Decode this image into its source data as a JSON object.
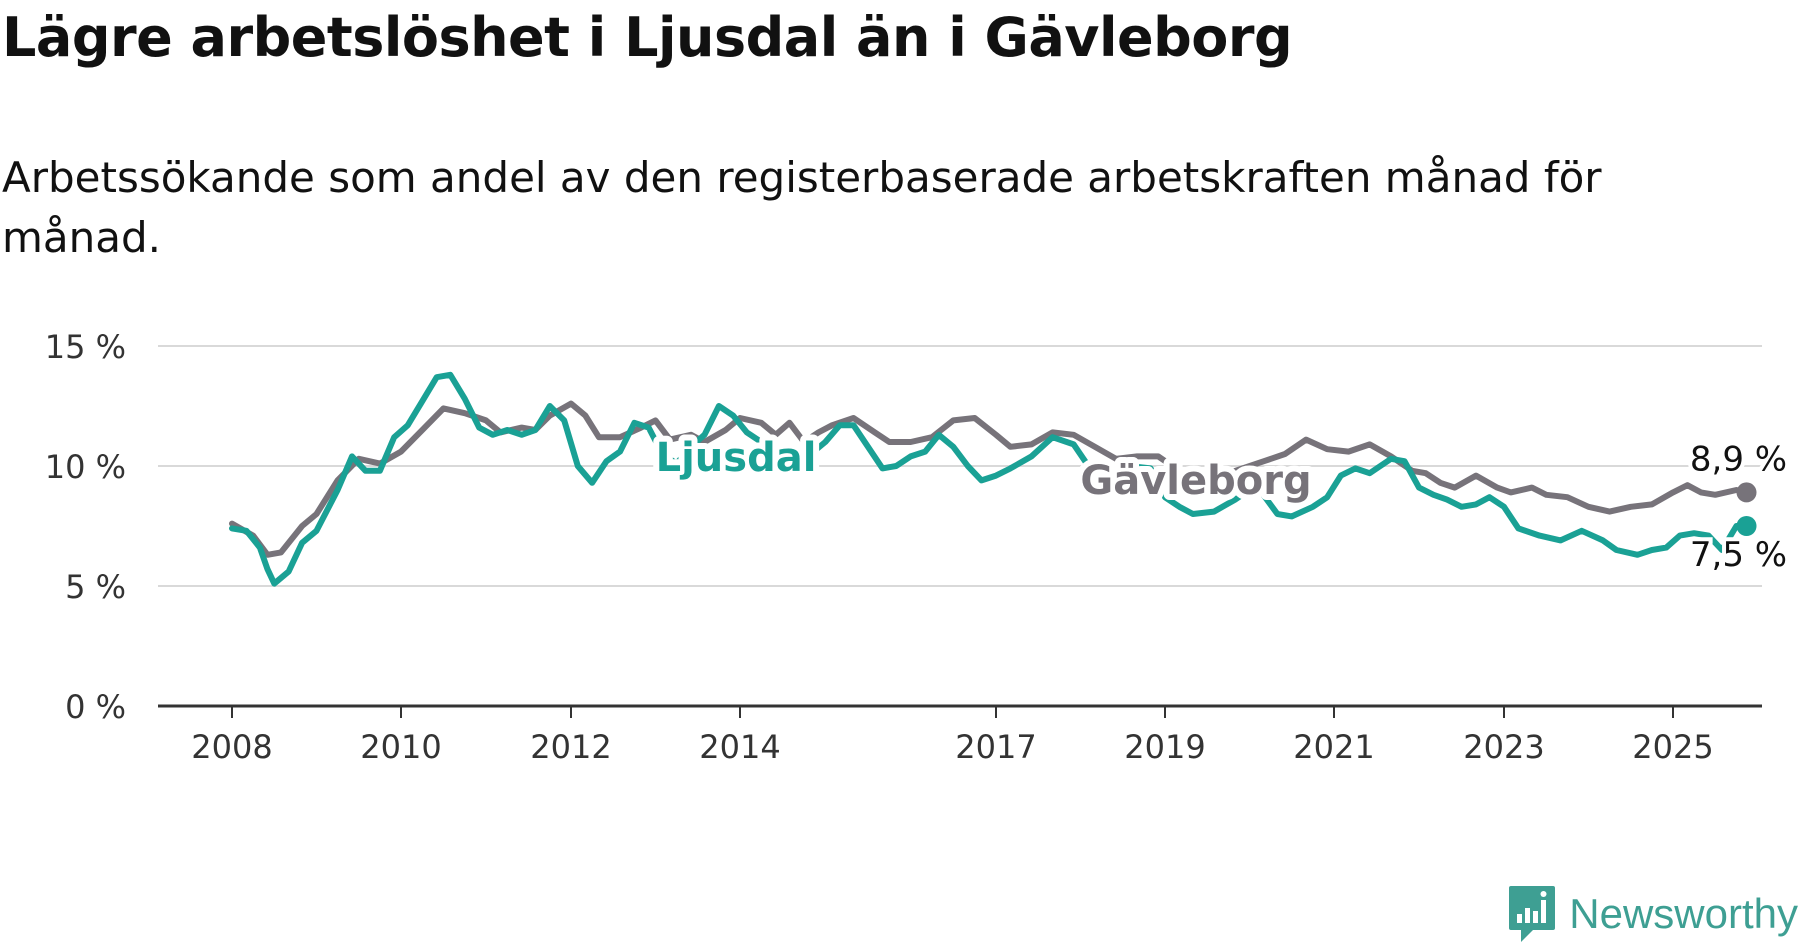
{
  "title": "Lägre arbetslöshet i Ljusdal än i Gävleborg",
  "subtitle": "Arbetssökande som andel av den registerbaserade arbetskraften månad för månad.",
  "brand": {
    "name": "Newsworthy",
    "color": "#3e9f93",
    "icon": "newsworthy-logo-icon"
  },
  "chart_data": {
    "type": "line",
    "title": "Lägre arbetslöshet i Ljusdal än i Gävleborg",
    "subtitle": "Arbetssökande som andel av den registerbaserade arbetskraften månad för månad.",
    "xlabel": "",
    "ylabel": "",
    "xlim": [
      2007.8,
      2025.9
    ],
    "ylim": [
      0,
      15
    ],
    "y_ticks": [
      0,
      5,
      10,
      15
    ],
    "y_tick_labels": [
      "0 %",
      "5 %",
      "10 %",
      "15 %"
    ],
    "x_ticks": [
      2008,
      2010,
      2012,
      2014,
      2017,
      2019,
      2021,
      2023,
      2025
    ],
    "x_tick_labels": [
      "2008",
      "2010",
      "2012",
      "2014",
      "2017",
      "2019",
      "2021",
      "2023",
      "2025"
    ],
    "grid": true,
    "legend": "inline labels",
    "series": [
      {
        "name": "Gävleborg",
        "color": "#77737a",
        "end_label": "8,9 %",
        "points": [
          [
            2008.0,
            7.6
          ],
          [
            2008.25,
            7.1
          ],
          [
            2008.42,
            6.3
          ],
          [
            2008.58,
            6.4
          ],
          [
            2008.83,
            7.5
          ],
          [
            2009.0,
            8.0
          ],
          [
            2009.25,
            9.4
          ],
          [
            2009.5,
            10.3
          ],
          [
            2009.75,
            10.1
          ],
          [
            2010.0,
            10.6
          ],
          [
            2010.25,
            11.5
          ],
          [
            2010.5,
            12.4
          ],
          [
            2010.75,
            12.2
          ],
          [
            2011.0,
            11.9
          ],
          [
            2011.17,
            11.4
          ],
          [
            2011.42,
            11.6
          ],
          [
            2011.58,
            11.5
          ],
          [
            2011.75,
            12.1
          ],
          [
            2012.0,
            12.6
          ],
          [
            2012.17,
            12.1
          ],
          [
            2012.33,
            11.2
          ],
          [
            2012.58,
            11.2
          ],
          [
            2012.83,
            11.6
          ],
          [
            2013.0,
            11.9
          ],
          [
            2013.17,
            11.1
          ],
          [
            2013.42,
            11.3
          ],
          [
            2013.58,
            11.0
          ],
          [
            2013.83,
            11.5
          ],
          [
            2014.0,
            12.0
          ],
          [
            2014.25,
            11.8
          ],
          [
            2014.42,
            11.3
          ],
          [
            2014.58,
            11.8
          ],
          [
            2014.75,
            11.0
          ],
          [
            2014.92,
            11.4
          ],
          [
            2015.08,
            11.7
          ],
          [
            2015.33,
            12.0
          ],
          [
            2015.58,
            11.4
          ],
          [
            2015.75,
            11.0
          ],
          [
            2016.0,
            11.0
          ],
          [
            2016.25,
            11.2
          ],
          [
            2016.5,
            11.9
          ],
          [
            2016.75,
            12.0
          ],
          [
            2017.0,
            11.3
          ],
          [
            2017.17,
            10.8
          ],
          [
            2017.42,
            10.9
          ],
          [
            2017.67,
            11.4
          ],
          [
            2017.92,
            11.3
          ],
          [
            2018.17,
            10.8
          ],
          [
            2018.42,
            10.3
          ],
          [
            2018.67,
            10.4
          ],
          [
            2018.92,
            10.4
          ],
          [
            2019.17,
            9.8
          ],
          [
            2019.42,
            9.3
          ],
          [
            2019.67,
            9.6
          ],
          [
            2019.92,
            9.9
          ],
          [
            2020.17,
            10.2
          ],
          [
            2020.42,
            10.5
          ],
          [
            2020.67,
            11.1
          ],
          [
            2020.92,
            10.7
          ],
          [
            2021.17,
            10.6
          ],
          [
            2021.42,
            10.9
          ],
          [
            2021.67,
            10.4
          ],
          [
            2021.92,
            9.8
          ],
          [
            2022.08,
            9.7
          ],
          [
            2022.25,
            9.3
          ],
          [
            2022.42,
            9.1
          ],
          [
            2022.67,
            9.6
          ],
          [
            2022.92,
            9.1
          ],
          [
            2023.08,
            8.9
          ],
          [
            2023.33,
            9.1
          ],
          [
            2023.5,
            8.8
          ],
          [
            2023.75,
            8.7
          ],
          [
            2024.0,
            8.3
          ],
          [
            2024.25,
            8.1
          ],
          [
            2024.5,
            8.3
          ],
          [
            2024.75,
            8.4
          ],
          [
            2025.0,
            8.9
          ],
          [
            2025.17,
            9.2
          ],
          [
            2025.33,
            8.9
          ],
          [
            2025.5,
            8.8
          ],
          [
            2025.75,
            9.0
          ],
          [
            2025.87,
            8.9
          ]
        ]
      },
      {
        "name": "Ljusdal",
        "color": "#1aa195",
        "end_label": "7,5 %",
        "points": [
          [
            2008.0,
            7.4
          ],
          [
            2008.17,
            7.3
          ],
          [
            2008.33,
            6.6
          ],
          [
            2008.42,
            5.7
          ],
          [
            2008.5,
            5.1
          ],
          [
            2008.67,
            5.6
          ],
          [
            2008.83,
            6.8
          ],
          [
            2009.0,
            7.3
          ],
          [
            2009.25,
            9.0
          ],
          [
            2009.42,
            10.4
          ],
          [
            2009.58,
            9.8
          ],
          [
            2009.75,
            9.8
          ],
          [
            2009.92,
            11.2
          ],
          [
            2010.08,
            11.7
          ],
          [
            2010.25,
            12.7
          ],
          [
            2010.42,
            13.7
          ],
          [
            2010.58,
            13.8
          ],
          [
            2010.75,
            12.8
          ],
          [
            2010.92,
            11.6
          ],
          [
            2011.08,
            11.3
          ],
          [
            2011.25,
            11.5
          ],
          [
            2011.42,
            11.3
          ],
          [
            2011.58,
            11.5
          ],
          [
            2011.75,
            12.5
          ],
          [
            2011.92,
            11.9
          ],
          [
            2012.08,
            10.0
          ],
          [
            2012.25,
            9.3
          ],
          [
            2012.42,
            10.2
          ],
          [
            2012.58,
            10.6
          ],
          [
            2012.75,
            11.8
          ],
          [
            2012.92,
            11.6
          ],
          [
            2013.08,
            10.5
          ],
          [
            2013.25,
            10.1
          ],
          [
            2013.42,
            10.8
          ],
          [
            2013.58,
            11.3
          ],
          [
            2013.75,
            12.5
          ],
          [
            2013.92,
            12.1
          ],
          [
            2014.08,
            11.4
          ],
          [
            2014.25,
            11.0
          ],
          [
            2014.5,
            10.7
          ],
          [
            2014.67,
            10.2
          ],
          [
            2014.83,
            10.5
          ],
          [
            2015.0,
            11.0
          ],
          [
            2015.17,
            11.7
          ],
          [
            2015.33,
            11.7
          ],
          [
            2015.5,
            10.8
          ],
          [
            2015.67,
            9.9
          ],
          [
            2015.83,
            10.0
          ],
          [
            2016.0,
            10.4
          ],
          [
            2016.17,
            10.6
          ],
          [
            2016.33,
            11.3
          ],
          [
            2016.5,
            10.8
          ],
          [
            2016.67,
            10.0
          ],
          [
            2016.83,
            9.4
          ],
          [
            2017.0,
            9.6
          ],
          [
            2017.17,
            9.9
          ],
          [
            2017.42,
            10.4
          ],
          [
            2017.67,
            11.2
          ],
          [
            2017.92,
            10.9
          ],
          [
            2018.17,
            9.6
          ],
          [
            2018.33,
            9.8
          ],
          [
            2018.58,
            10.0
          ],
          [
            2018.83,
            9.9
          ],
          [
            2019.0,
            8.7
          ],
          [
            2019.17,
            8.3
          ],
          [
            2019.33,
            8.0
          ],
          [
            2019.58,
            8.1
          ],
          [
            2019.83,
            8.6
          ],
          [
            2020.08,
            9.2
          ],
          [
            2020.33,
            8.0
          ],
          [
            2020.5,
            7.9
          ],
          [
            2020.75,
            8.3
          ],
          [
            2020.92,
            8.7
          ],
          [
            2021.08,
            9.6
          ],
          [
            2021.25,
            9.9
          ],
          [
            2021.42,
            9.7
          ],
          [
            2021.67,
            10.3
          ],
          [
            2021.83,
            10.2
          ],
          [
            2022.0,
            9.1
          ],
          [
            2022.17,
            8.8
          ],
          [
            2022.33,
            8.6
          ],
          [
            2022.5,
            8.3
          ],
          [
            2022.67,
            8.4
          ],
          [
            2022.83,
            8.7
          ],
          [
            2023.0,
            8.3
          ],
          [
            2023.17,
            7.4
          ],
          [
            2023.42,
            7.1
          ],
          [
            2023.67,
            6.9
          ],
          [
            2023.92,
            7.3
          ],
          [
            2024.17,
            6.9
          ],
          [
            2024.33,
            6.5
          ],
          [
            2024.58,
            6.3
          ],
          [
            2024.75,
            6.5
          ],
          [
            2024.92,
            6.6
          ],
          [
            2025.08,
            7.1
          ],
          [
            2025.25,
            7.2
          ],
          [
            2025.42,
            7.1
          ],
          [
            2025.58,
            6.5
          ],
          [
            2025.75,
            7.5
          ],
          [
            2025.87,
            7.5
          ]
        ]
      }
    ]
  }
}
